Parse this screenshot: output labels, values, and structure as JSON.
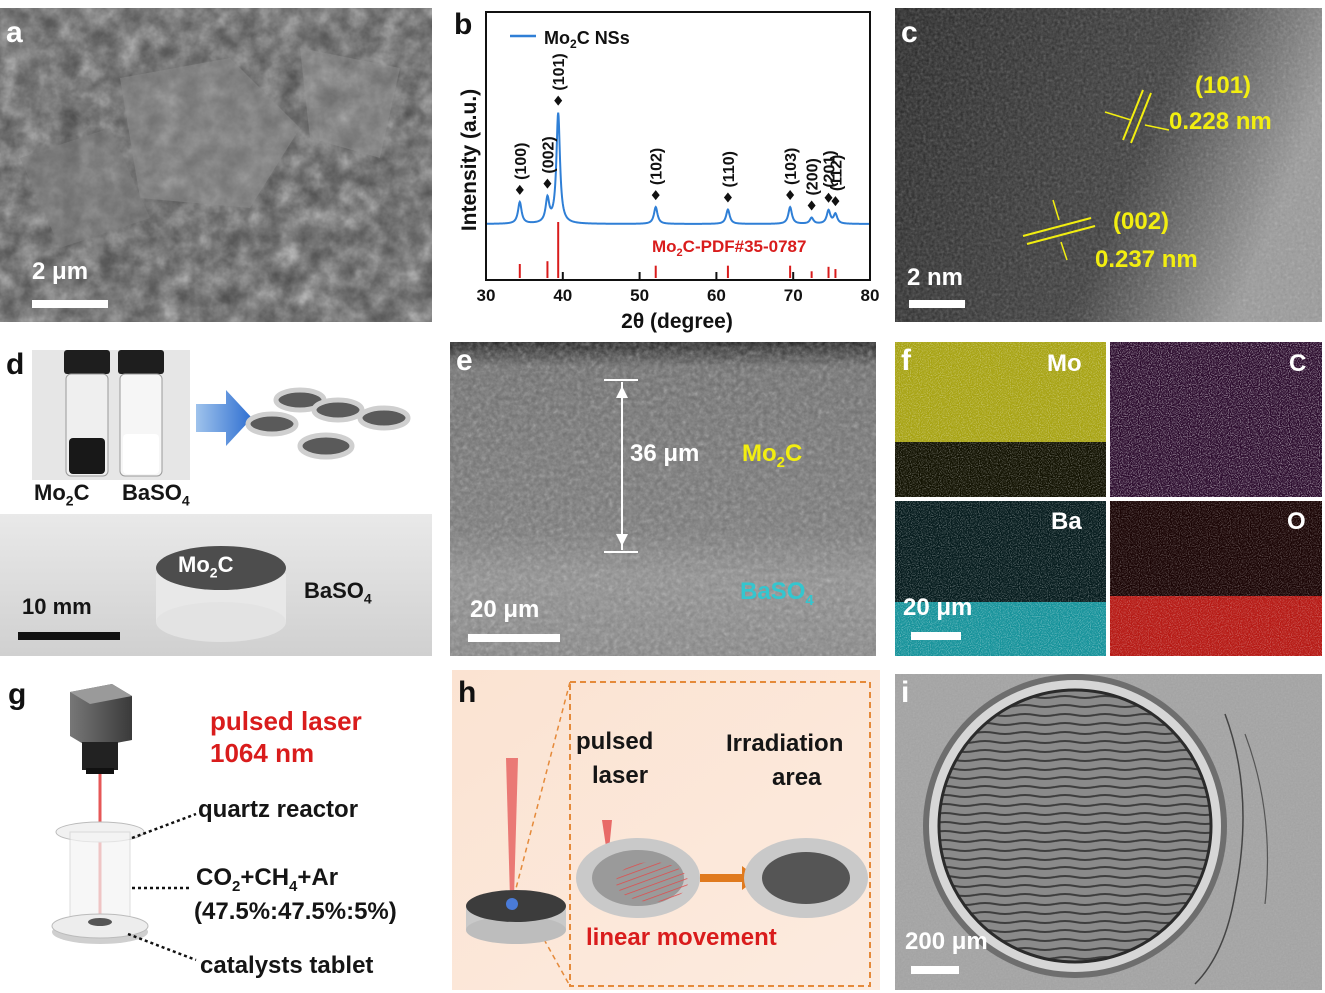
{
  "panels": {
    "a": {
      "label": "a",
      "scale_bar": "2 μm"
    },
    "b": {
      "label": "b"
    },
    "c": {
      "label": "c",
      "scale_bar": "2 nm",
      "planes": [
        {
          "hkl": "(101)",
          "spacing": "0.228 nm"
        },
        {
          "hkl": "(002)",
          "spacing": "0.237 nm"
        }
      ]
    },
    "d": {
      "label": "d",
      "vial_labels": [
        "Mo2C",
        "BaSO4"
      ],
      "tablet_top": "Mo2C",
      "tablet_side": "BaSO4",
      "scale_bar": "10 mm"
    },
    "e": {
      "label": "e",
      "thickness": "36 μm",
      "layer_top": "Mo2C",
      "layer_bottom": "BaSO4",
      "scale_bar": "20 μm"
    },
    "f": {
      "label": "f",
      "maps": [
        "Mo",
        "C",
        "Ba",
        "O"
      ],
      "scale_bar": "20 μm"
    },
    "g": {
      "label": "g",
      "laser_line1": "pulsed laser",
      "laser_line2": "1064 nm",
      "reactor": "quartz reactor",
      "gas": "CO2+CH4+Ar",
      "gas_ratio": "(47.5%:47.5%:5%)",
      "tablet": "catalysts tablet"
    },
    "h": {
      "label": "h",
      "laser_line1": "pulsed",
      "laser_line2": "laser",
      "area_line1": "Irradiation",
      "area_line2": "area",
      "movement": "linear movement"
    },
    "i": {
      "label": "i",
      "scale_bar": "200 μm"
    }
  },
  "colors": {
    "xrd_line": "#2f7fd6",
    "reference_sticks": "#d91c1c",
    "annotation_yellow": "#f2ee10",
    "map_mo": "#d8d21a",
    "map_c": "#b01fb8",
    "map_ba": "#19b8c0",
    "map_o": "#d0241e"
  },
  "chart_data": {
    "type": "line",
    "xlabel": "2θ (degree)",
    "ylabel": "Intensity (a.u.)",
    "xlim": [
      30,
      80
    ],
    "xticks": [
      "30",
      "40",
      "50",
      "60",
      "70",
      "80"
    ],
    "series": [
      {
        "name": "Mo2C NSs",
        "peaks": [
          {
            "x": 34.4,
            "hkl": "(100)",
            "rel": 0.18
          },
          {
            "x": 38.0,
            "hkl": "(002)",
            "rel": 0.2
          },
          {
            "x": 39.4,
            "hkl": "(101)",
            "rel": 0.92
          },
          {
            "x": 52.1,
            "hkl": "(102)",
            "rel": 0.14
          },
          {
            "x": 61.5,
            "hkl": "(110)",
            "rel": 0.12
          },
          {
            "x": 69.6,
            "hkl": "(103)",
            "rel": 0.14
          },
          {
            "x": 72.4,
            "hkl": "(200)",
            "rel": 0.05
          },
          {
            "x": 74.6,
            "hkl": "(201)",
            "rel": 0.11
          },
          {
            "x": 75.5,
            "hkl": "(112)",
            "rel": 0.08
          }
        ]
      }
    ],
    "reference": {
      "name": "Mo2C-PDF#35-0787",
      "sticks": [
        {
          "x": 34.4,
          "rel": 0.25
        },
        {
          "x": 38.0,
          "rel": 0.3
        },
        {
          "x": 39.4,
          "rel": 1.0
        },
        {
          "x": 52.1,
          "rel": 0.22
        },
        {
          "x": 61.5,
          "rel": 0.22
        },
        {
          "x": 69.6,
          "rel": 0.22
        },
        {
          "x": 72.4,
          "rel": 0.12
        },
        {
          "x": 74.6,
          "rel": 0.2
        },
        {
          "x": 75.5,
          "rel": 0.16
        }
      ]
    }
  }
}
